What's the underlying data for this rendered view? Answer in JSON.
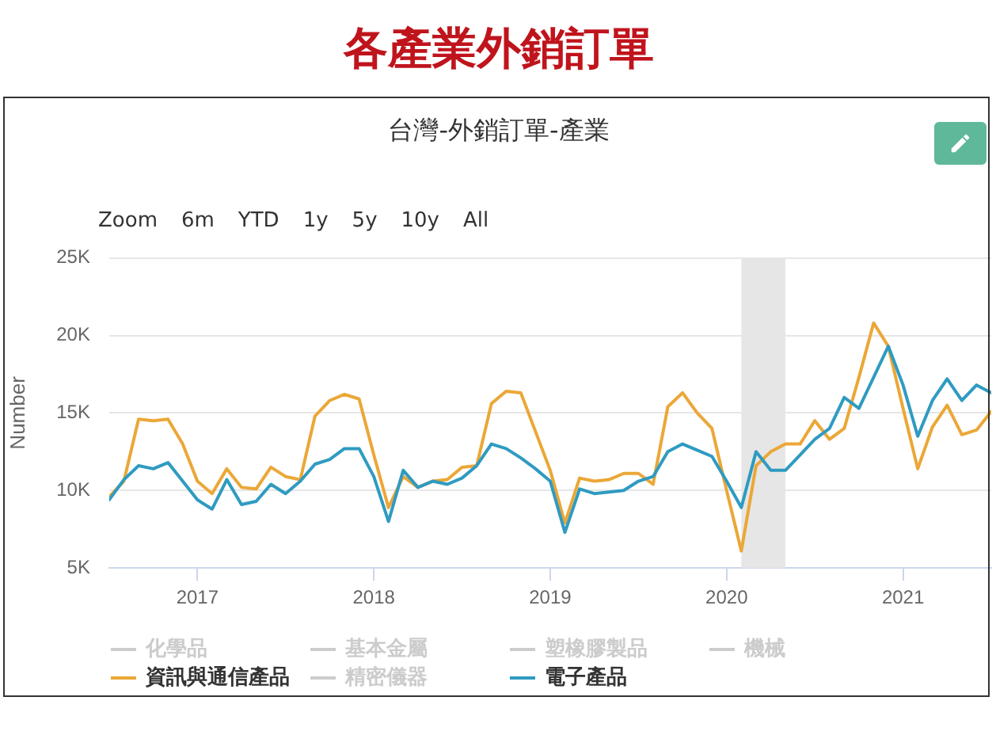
{
  "chart_data": {
    "type": "line",
    "title": "各產業外銷訂單",
    "subtitle": "台灣-外銷訂單-產業",
    "ylabel": "Number",
    "annotations": [
      "Zoom",
      "6m",
      "YTD",
      "1y",
      "5y",
      "10y",
      "All"
    ],
    "x": [
      "2016-07",
      "2016-08",
      "2016-09",
      "2016-10",
      "2016-11",
      "2016-12",
      "2017-01",
      "2017-02",
      "2017-03",
      "2017-04",
      "2017-05",
      "2017-06",
      "2017-07",
      "2017-08",
      "2017-09",
      "2017-10",
      "2017-11",
      "2017-12",
      "2018-01",
      "2018-02",
      "2018-03",
      "2018-04",
      "2018-05",
      "2018-06",
      "2018-07",
      "2018-08",
      "2018-09",
      "2018-10",
      "2018-11",
      "2018-12",
      "2019-01",
      "2019-02",
      "2019-03",
      "2019-04",
      "2019-05",
      "2019-06",
      "2019-07",
      "2019-08",
      "2019-09",
      "2019-10",
      "2019-11",
      "2019-12",
      "2020-01",
      "2020-02",
      "2020-03",
      "2020-04",
      "2020-05",
      "2020-06",
      "2020-07",
      "2020-08",
      "2020-09",
      "2020-10",
      "2020-11",
      "2020-12",
      "2021-01",
      "2021-02",
      "2021-03",
      "2021-04",
      "2021-05",
      "2021-06",
      "2021-07"
    ],
    "series": [
      {
        "name": "化學品",
        "color": "#cccccc",
        "values": [
          null,
          null,
          null,
          null,
          null,
          null,
          null,
          null,
          null,
          null,
          null,
          null,
          null,
          null,
          null,
          null,
          null,
          null,
          null,
          null,
          null,
          null,
          null,
          null,
          null,
          null,
          null,
          null,
          null,
          null,
          null,
          null,
          null,
          null,
          null,
          null,
          null,
          null,
          null,
          null,
          null,
          null,
          null,
          null,
          null,
          null,
          null,
          null,
          null,
          null,
          null,
          null,
          null,
          null,
          null,
          null,
          null,
          null,
          null,
          null,
          null
        ]
      },
      {
        "name": "基本金屬",
        "color": "#cccccc",
        "values": [
          null,
          null,
          null,
          null,
          null,
          null,
          null,
          null,
          null,
          null,
          null,
          null,
          null,
          null,
          null,
          null,
          null,
          null,
          null,
          null,
          null,
          null,
          null,
          null,
          null,
          null,
          null,
          null,
          null,
          null,
          null,
          null,
          null,
          null,
          null,
          null,
          null,
          null,
          null,
          null,
          null,
          null,
          null,
          null,
          null,
          null,
          null,
          null,
          null,
          null,
          null,
          null,
          null,
          null,
          null,
          null,
          null,
          null,
          null,
          null,
          null
        ]
      },
      {
        "name": "塑橡膠製品",
        "color": "#cccccc",
        "values": [
          null,
          null,
          null,
          null,
          null,
          null,
          null,
          null,
          null,
          null,
          null,
          null,
          null,
          null,
          null,
          null,
          null,
          null,
          null,
          null,
          null,
          null,
          null,
          null,
          null,
          null,
          null,
          null,
          null,
          null,
          null,
          null,
          null,
          null,
          null,
          null,
          null,
          null,
          null,
          null,
          null,
          null,
          null,
          null,
          null,
          null,
          null,
          null,
          null,
          null,
          null,
          null,
          null,
          null,
          null,
          null,
          null,
          null,
          null,
          null,
          null
        ]
      },
      {
        "name": "機械",
        "color": "#cccccc",
        "values": [
          null,
          null,
          null,
          null,
          null,
          null,
          null,
          null,
          null,
          null,
          null,
          null,
          null,
          null,
          null,
          null,
          null,
          null,
          null,
          null,
          null,
          null,
          null,
          null,
          null,
          null,
          null,
          null,
          null,
          null,
          null,
          null,
          null,
          null,
          null,
          null,
          null,
          null,
          null,
          null,
          null,
          null,
          null,
          null,
          null,
          null,
          null,
          null,
          null,
          null,
          null,
          null,
          null,
          null,
          null,
          null,
          null,
          null,
          null,
          null,
          null
        ]
      },
      {
        "name": "資訊與通信產品",
        "color": "#eba737",
        "values": [
          9600,
          10600,
          14600,
          14500,
          14600,
          13000,
          10600,
          9800,
          11400,
          10200,
          10100,
          11500,
          10900,
          10700,
          14800,
          15800,
          16200,
          15900,
          12300,
          8900,
          10900,
          10200,
          10600,
          10700,
          11500,
          11600,
          15600,
          16400,
          16300,
          13800,
          11300,
          7900,
          10800,
          10600,
          10700,
          11100,
          11100,
          10400,
          15400,
          16300,
          15000,
          14000,
          10000,
          6100,
          11600,
          12500,
          13000,
          13000,
          14500,
          13300,
          14000,
          17300,
          20800,
          19300,
          15300,
          11400,
          14100,
          15500,
          13600,
          13900,
          15100
        ]
      },
      {
        "name": "精密儀器",
        "color": "#cccccc",
        "values": [
          null,
          null,
          null,
          null,
          null,
          null,
          null,
          null,
          null,
          null,
          null,
          null,
          null,
          null,
          null,
          null,
          null,
          null,
          null,
          null,
          null,
          null,
          null,
          null,
          null,
          null,
          null,
          null,
          null,
          null,
          null,
          null,
          null,
          null,
          null,
          null,
          null,
          null,
          null,
          null,
          null,
          null,
          null,
          null,
          null,
          null,
          null,
          null,
          null,
          null,
          null,
          null,
          null,
          null,
          null,
          null,
          null,
          null,
          null,
          null,
          null
        ]
      },
      {
        "name": "電子產品",
        "color": "#2f9bc1",
        "values": [
          9400,
          10700,
          11600,
          11400,
          11800,
          10600,
          9400,
          8800,
          10700,
          9100,
          9300,
          10400,
          9800,
          10600,
          11700,
          12000,
          12700,
          12700,
          10900,
          8000,
          11300,
          10200,
          10600,
          10400,
          10800,
          11600,
          13000,
          12700,
          12100,
          11400,
          10600,
          7300,
          10100,
          9800,
          9900,
          10000,
          10600,
          10900,
          12500,
          13000,
          12600,
          12200,
          10600,
          8900,
          12500,
          11300,
          11300,
          12300,
          13300,
          14000,
          16000,
          15300,
          17300,
          19300,
          16800,
          13500,
          15800,
          17200,
          15800,
          16800,
          16300
        ]
      }
    ],
    "xlim": [
      "2016-07",
      "2021-07"
    ],
    "xticks": [
      "2017",
      "2018",
      "2019",
      "2020",
      "2021"
    ],
    "ylim": [
      5000,
      25000
    ],
    "yticks": [
      {
        "value": 5000,
        "label": "5K"
      },
      {
        "value": 10000,
        "label": "10K"
      },
      {
        "value": 15000,
        "label": "15K"
      },
      {
        "value": 20000,
        "label": "20K"
      },
      {
        "value": 25000,
        "label": "25K"
      }
    ],
    "bands": [
      {
        "axis": "x",
        "from": "2020-02",
        "to": "2020-05",
        "color": "#e6e6e6"
      }
    ],
    "grid": "y",
    "legend": "bottom",
    "marker": "none",
    "line_style": "solid"
  }
}
